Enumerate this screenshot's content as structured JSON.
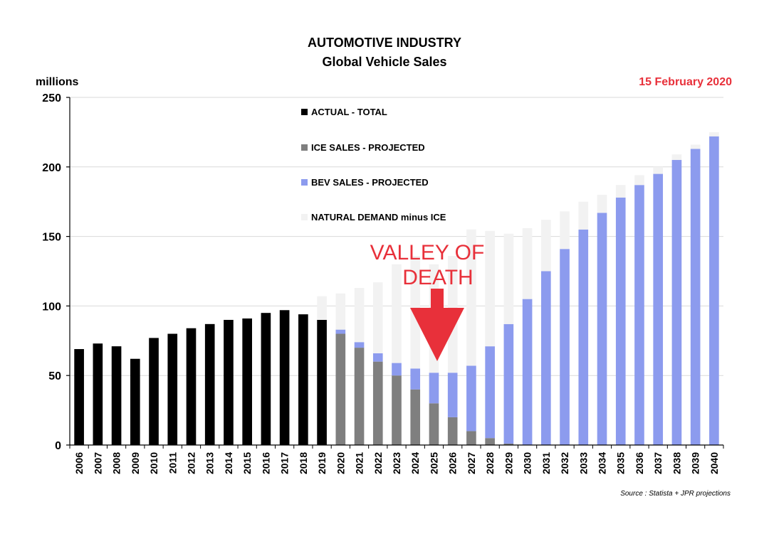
{
  "chart_data": {
    "type": "bar",
    "title": "AUTOMOTIVE INDUSTRY",
    "subtitle": "Global Vehicle Sales",
    "ylabel": "millions",
    "date": "15 February 2020",
    "source": "Source : Statista + JPR projections",
    "annotation": [
      "VALLEY OF",
      "DEATH"
    ],
    "ylim": [
      0,
      250
    ],
    "yticks": [
      "0",
      "50",
      "100",
      "150",
      "200",
      "250"
    ],
    "grid": true,
    "legend_position": "top-center",
    "colors": {
      "actual": "#000000",
      "ice": "#7f7f7f",
      "bev": "#8c9bee",
      "natural": "#f2f2f2",
      "accent": "#e8303a"
    },
    "categories": [
      "2006",
      "2007",
      "2008",
      "2009",
      "2010",
      "2011",
      "2012",
      "2013",
      "2014",
      "2015",
      "2016",
      "2017",
      "2018",
      "2019",
      "2020",
      "2021",
      "2022",
      "2023",
      "2024",
      "2025",
      "2026",
      "2027",
      "2028",
      "2029",
      "2030",
      "2031",
      "2032",
      "2033",
      "2034",
      "2035",
      "2036",
      "2037",
      "2038",
      "2039",
      "2040"
    ],
    "series": [
      {
        "name": "ACTUAL - TOTAL",
        "key": "actual",
        "values": [
          69,
          73,
          71,
          62,
          77,
          80,
          84,
          87,
          90,
          91,
          95,
          97,
          94,
          90,
          null,
          null,
          null,
          null,
          null,
          null,
          null,
          null,
          null,
          null,
          null,
          null,
          null,
          null,
          null,
          null,
          null,
          null,
          null,
          null,
          null
        ]
      },
      {
        "name": "ICE SALES - PROJECTED",
        "key": "ice",
        "values": [
          null,
          null,
          null,
          null,
          null,
          null,
          null,
          null,
          null,
          null,
          null,
          null,
          null,
          null,
          80,
          70,
          60,
          50,
          40,
          30,
          20,
          10,
          5,
          1,
          0,
          0,
          0,
          0,
          0,
          0,
          0,
          0,
          0,
          0,
          0
        ]
      },
      {
        "name": "BEV SALES - PROJECTED",
        "key": "bev",
        "values": [
          null,
          null,
          null,
          null,
          null,
          null,
          null,
          null,
          null,
          null,
          null,
          null,
          null,
          null,
          3,
          4,
          6,
          9,
          15,
          22,
          32,
          47,
          66,
          86,
          105,
          125,
          141,
          155,
          167,
          178,
          187,
          195,
          205,
          213,
          222
        ]
      },
      {
        "name": "NATURAL DEMAND minus ICE",
        "key": "natural",
        "values": [
          null,
          null,
          null,
          null,
          null,
          null,
          null,
          null,
          null,
          null,
          null,
          null,
          null,
          17,
          26,
          39,
          51,
          71,
          81,
          78,
          84,
          98,
          83,
          65,
          51,
          37,
          27,
          20,
          13,
          9,
          7,
          5,
          4,
          3,
          3
        ]
      }
    ]
  }
}
